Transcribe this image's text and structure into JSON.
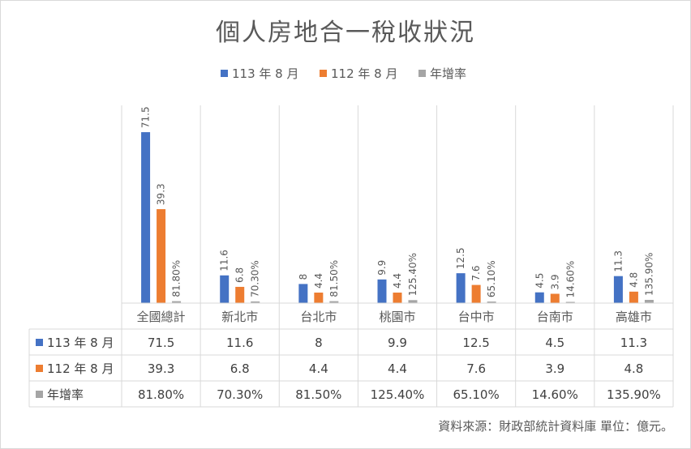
{
  "chart_data": {
    "type": "bar",
    "title": "個人房地合一稅收狀況",
    "categories": [
      "全國總計",
      "新北市",
      "台北市",
      "桃園市",
      "台中市",
      "台南市",
      "高雄市"
    ],
    "series": [
      {
        "name": "113 年 8 月",
        "color": "#4472c4",
        "values": [
          71.5,
          11.6,
          8,
          9.9,
          12.5,
          4.5,
          11.3
        ],
        "labels": [
          "71.5",
          "11.6",
          "8",
          "9.9",
          "12.5",
          "4.5",
          "11.3"
        ]
      },
      {
        "name": "112 年 8 月",
        "color": "#ed7d31",
        "values": [
          39.3,
          6.8,
          4.4,
          4.4,
          7.6,
          3.9,
          4.8
        ],
        "labels": [
          "39.3",
          "6.8",
          "4.4",
          "4.4",
          "7.6",
          "3.9",
          "4.8"
        ]
      },
      {
        "name": "年增率",
        "color": "#a5a5a5",
        "values": [
          0.818,
          0.703,
          0.815,
          1.254,
          0.651,
          0.146,
          1.359
        ],
        "labels": [
          "81.80%",
          "70.30%",
          "81.50%",
          "125.40%",
          "65.10%",
          "14.60%",
          "135.90%"
        ]
      }
    ],
    "ylim": [
      0,
      80
    ],
    "legend": "top",
    "data_table": true,
    "source_note": "資料來源：財政部統計資料庫 單位：億元。"
  }
}
